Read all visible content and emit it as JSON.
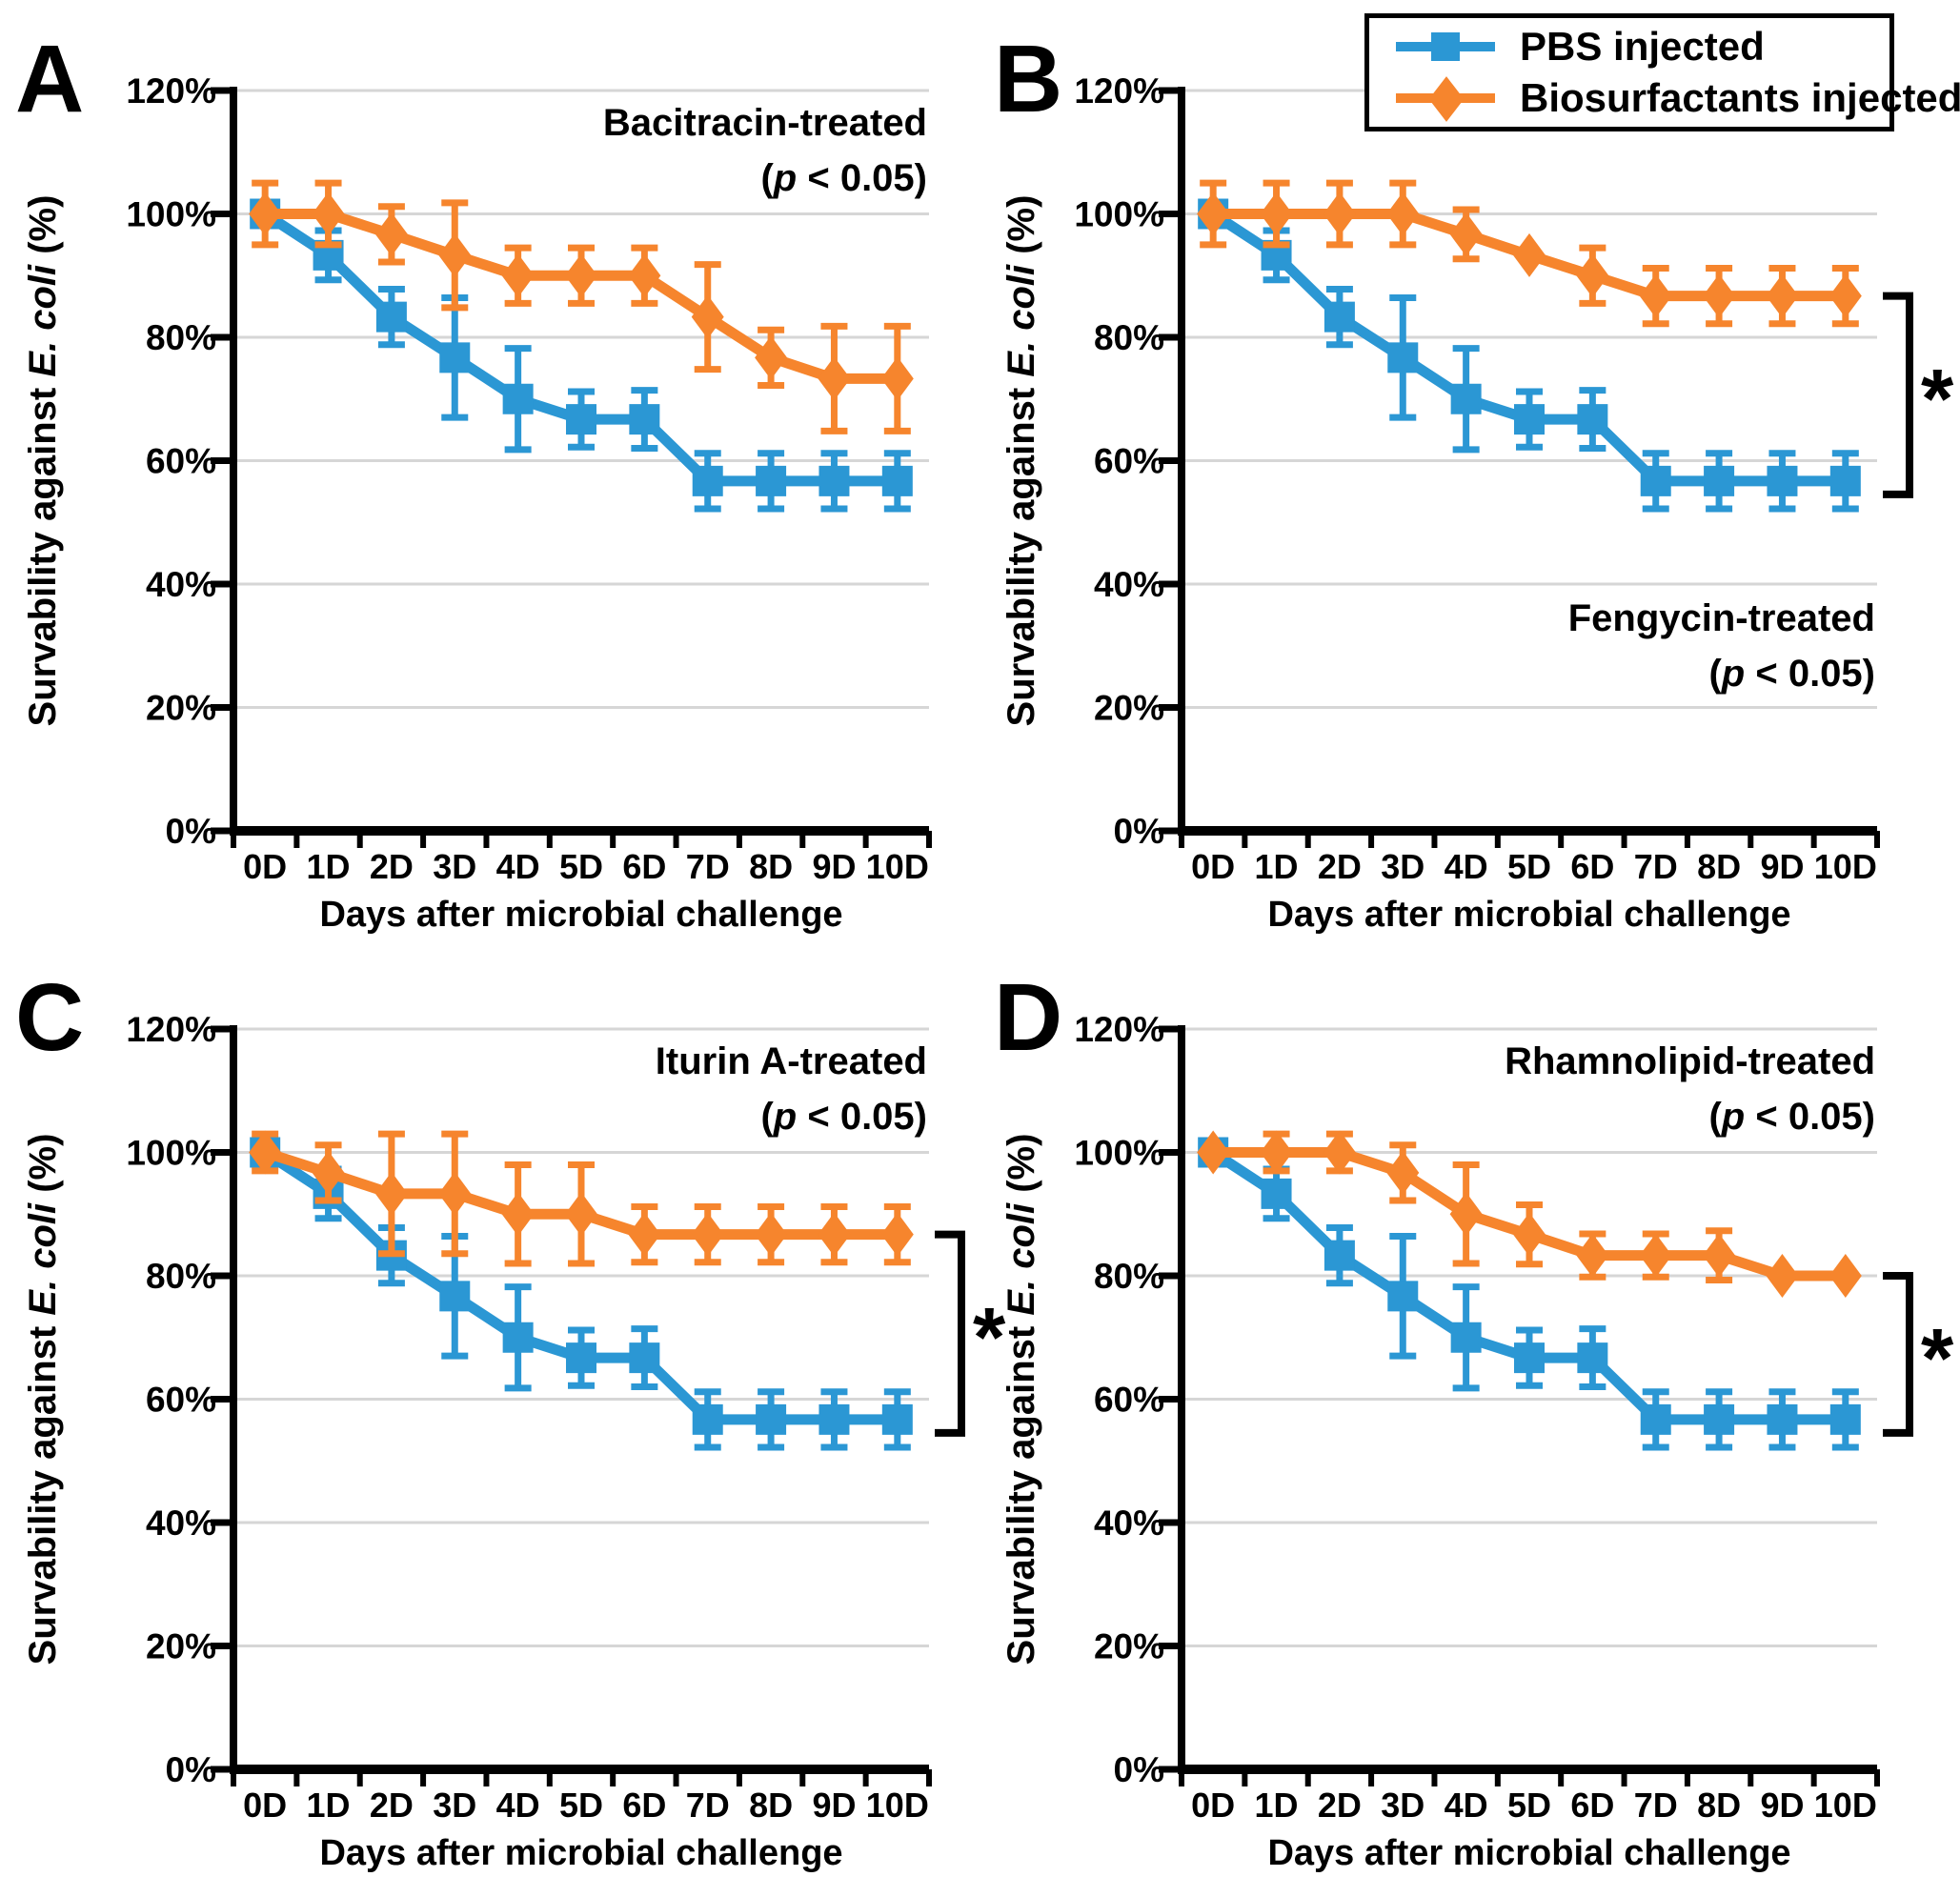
{
  "legend": {
    "items": [
      {
        "label": "PBS injected",
        "marker": "square",
        "color": "#2B97D4"
      },
      {
        "label": "Biosurfactants injected",
        "marker": "diamond",
        "color": "#F6852D"
      }
    ]
  },
  "chart_data": [
    {
      "panel": "A",
      "type": "line",
      "title": "Bacitracin-treated",
      "subtitle_segments": [
        {
          "t": "(",
          "i": false
        },
        {
          "t": "p",
          "i": true
        },
        {
          "t": " < 0.05)",
          "i": false
        }
      ],
      "annotation_layout": {
        "y1": 142,
        "y2": 200
      },
      "significance": false,
      "sig_label": "",
      "x": [
        "0D",
        "1D",
        "2D",
        "3D",
        "4D",
        "5D",
        "6D",
        "7D",
        "8D",
        "9D",
        "10D"
      ],
      "xlabel": "Days after microbial challenge",
      "ylabel_segments": [
        {
          "t": "Survability against ",
          "i": false
        },
        {
          "t": "E. coli",
          "i": true
        },
        {
          "t": " (%)",
          "i": false
        }
      ],
      "ylim": [
        0,
        120
      ],
      "yticks": [
        0,
        20,
        40,
        60,
        80,
        100,
        120
      ],
      "yticklabels": [
        "0%",
        "20%",
        "40%",
        "60%",
        "80%",
        "100%",
        "120%"
      ],
      "grid": true,
      "legend_position": "top-right-outside",
      "series": [
        {
          "name": "PBS injected",
          "color": "#2B97D4",
          "marker": "square",
          "values": [
            100,
            93.3,
            83.3,
            76.7,
            70,
            66.7,
            66.7,
            56.7,
            56.7,
            56.7,
            56.7
          ],
          "errors": [
            0,
            4,
            4.5,
            9.7,
            8.2,
            4.5,
            4.7,
            4.5,
            4.5,
            4.5,
            4.5
          ]
        },
        {
          "name": "Biosurfactants injected",
          "color": "#F6852D",
          "marker": "diamond",
          "values": [
            100,
            100,
            96.7,
            93.3,
            90,
            90,
            90,
            83.3,
            76.7,
            73.3,
            73.3
          ],
          "errors": [
            5,
            5,
            4.5,
            8.5,
            4.5,
            4.5,
            4.5,
            8.5,
            4.5,
            8.5,
            8.5
          ]
        }
      ]
    },
    {
      "panel": "B",
      "type": "line",
      "title": "Fengycin-treated",
      "subtitle_segments": [
        {
          "t": "(",
          "i": false
        },
        {
          "t": "p",
          "i": true
        },
        {
          "t": " < 0.05)",
          "i": false
        }
      ],
      "annotation_layout": {
        "y1": 662,
        "y2": 720
      },
      "significance": true,
      "sig_label": "*",
      "x": [
        "0D",
        "1D",
        "2D",
        "3D",
        "4D",
        "5D",
        "6D",
        "7D",
        "8D",
        "9D",
        "10D"
      ],
      "xlabel": "Days after microbial challenge",
      "ylabel_segments": [
        {
          "t": "Survability against ",
          "i": false
        },
        {
          "t": "E. coli",
          "i": true
        },
        {
          "t": " (%)",
          "i": false
        }
      ],
      "ylim": [
        0,
        120
      ],
      "yticks": [
        0,
        20,
        40,
        60,
        80,
        100,
        120
      ],
      "yticklabels": [
        "0%",
        "20%",
        "40%",
        "60%",
        "80%",
        "100%",
        "120%"
      ],
      "grid": true,
      "series": [
        {
          "name": "PBS injected",
          "color": "#2B97D4",
          "marker": "square",
          "values": [
            100,
            93.3,
            83.3,
            76.7,
            70,
            66.7,
            66.7,
            56.7,
            56.7,
            56.7,
            56.7
          ],
          "errors": [
            0,
            4,
            4.5,
            9.7,
            8.2,
            4.5,
            4.7,
            4.5,
            4.5,
            4.5,
            4.5
          ]
        },
        {
          "name": "Biosurfactants injected",
          "color": "#F6852D",
          "marker": "diamond",
          "values": [
            100,
            100,
            100,
            100,
            96.7,
            93.3,
            90,
            86.7,
            86.7,
            86.7,
            86.7
          ],
          "errors": [
            5,
            5,
            5,
            5,
            4,
            0,
            4.5,
            4.5,
            4.5,
            4.5,
            4.5
          ]
        }
      ]
    },
    {
      "panel": "C",
      "type": "line",
      "title": "Iturin A-treated",
      "subtitle_segments": [
        {
          "t": "(",
          "i": false
        },
        {
          "t": "p",
          "i": true
        },
        {
          "t": " < 0.05)",
          "i": false
        }
      ],
      "annotation_layout": {
        "y1": 142,
        "y2": 200
      },
      "significance": true,
      "sig_label": "*",
      "x": [
        "0D",
        "1D",
        "2D",
        "3D",
        "4D",
        "5D",
        "6D",
        "7D",
        "8D",
        "9D",
        "10D"
      ],
      "xlabel": "Days after microbial challenge",
      "ylabel_segments": [
        {
          "t": "Survability against ",
          "i": false
        },
        {
          "t": "E. coli",
          "i": true
        },
        {
          "t": " (%)",
          "i": false
        }
      ],
      "ylim": [
        0,
        120
      ],
      "yticks": [
        0,
        20,
        40,
        60,
        80,
        100,
        120
      ],
      "yticklabels": [
        "0%",
        "20%",
        "40%",
        "60%",
        "80%",
        "100%",
        "120%"
      ],
      "grid": true,
      "series": [
        {
          "name": "PBS injected",
          "color": "#2B97D4",
          "marker": "square",
          "values": [
            100,
            93.3,
            83.3,
            76.7,
            70,
            66.7,
            66.7,
            56.7,
            56.7,
            56.7,
            56.7
          ],
          "errors": [
            0,
            4,
            4.5,
            9.7,
            8.2,
            4.5,
            4.7,
            4.5,
            4.5,
            4.5,
            4.5
          ]
        },
        {
          "name": "Biosurfactants injected",
          "color": "#F6852D",
          "marker": "diamond",
          "values": [
            100,
            96.7,
            93.3,
            93.3,
            90,
            90,
            86.7,
            86.7,
            86.7,
            86.7,
            86.7
          ],
          "errors": [
            3,
            4.5,
            9.7,
            9.7,
            8,
            8,
            4.5,
            4.5,
            4.5,
            4.5,
            4.5
          ]
        }
      ]
    },
    {
      "panel": "D",
      "type": "line",
      "title": "Rhamnolipid-treated",
      "subtitle_segments": [
        {
          "t": "(",
          "i": false
        },
        {
          "t": "p",
          "i": true
        },
        {
          "t": " < 0.05)",
          "i": false
        }
      ],
      "annotation_layout": {
        "y1": 142,
        "y2": 200
      },
      "significance": true,
      "sig_label": "*",
      "x": [
        "0D",
        "1D",
        "2D",
        "3D",
        "4D",
        "5D",
        "6D",
        "7D",
        "8D",
        "9D",
        "10D"
      ],
      "xlabel": "Days after microbial challenge",
      "ylabel_segments": [
        {
          "t": "Survability against ",
          "i": false
        },
        {
          "t": "E. coli",
          "i": true
        },
        {
          "t": " (%)",
          "i": false
        }
      ],
      "ylim": [
        0,
        120
      ],
      "yticks": [
        0,
        20,
        40,
        60,
        80,
        100,
        120
      ],
      "yticklabels": [
        "0%",
        "20%",
        "40%",
        "60%",
        "80%",
        "100%",
        "120%"
      ],
      "grid": true,
      "series": [
        {
          "name": "PBS injected",
          "color": "#2B97D4",
          "marker": "square",
          "values": [
            100,
            93.3,
            83.3,
            76.7,
            70,
            66.7,
            66.7,
            56.7,
            56.7,
            56.7,
            56.7
          ],
          "errors": [
            0,
            4,
            4.5,
            9.7,
            8.2,
            4.5,
            4.7,
            4.5,
            4.5,
            4.5,
            4.5
          ]
        },
        {
          "name": "Biosurfactants injected",
          "color": "#F6852D",
          "marker": "diamond",
          "values": [
            100,
            100,
            100,
            96.7,
            90,
            86.7,
            83.3,
            83.3,
            83.3,
            80,
            80
          ],
          "errors": [
            0,
            3,
            3,
            4.5,
            8,
            4.8,
            3.5,
            3.5,
            4,
            0,
            0
          ]
        }
      ]
    }
  ]
}
